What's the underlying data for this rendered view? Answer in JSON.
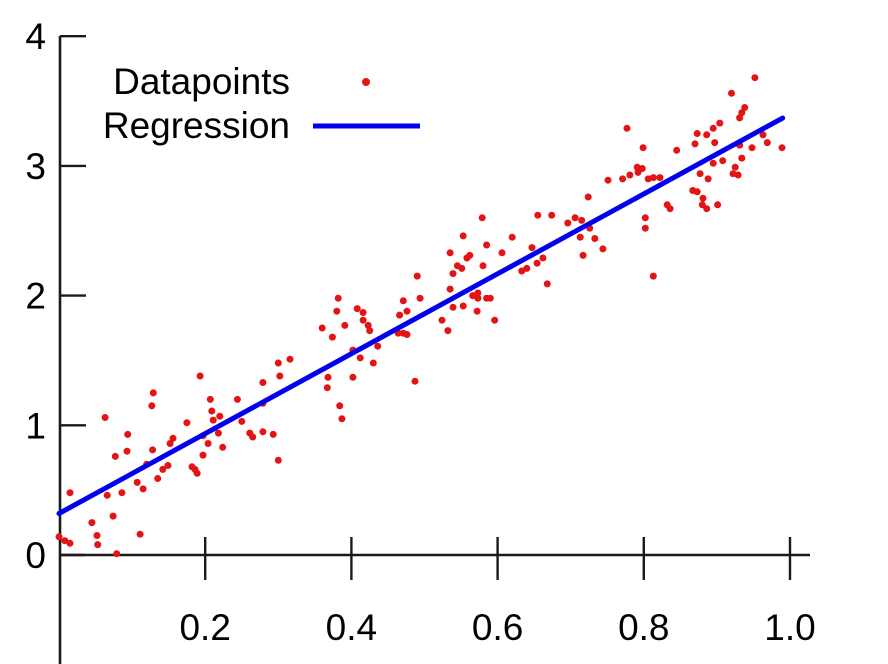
{
  "figure": {
    "background": "#ffffff"
  },
  "colors": {
    "points": "#e51414",
    "regression_line": "#0000ee",
    "axis": "#1a1a1a",
    "text": "#000000"
  },
  "chart_data": {
    "type": "scatter",
    "title": "",
    "xlabel": "",
    "ylabel": "",
    "grid": false,
    "xlim": [
      0,
      1.03
    ],
    "ylim": [
      -0.85,
      4.02
    ],
    "x_tick_values": [
      0.2,
      0.4,
      0.6,
      0.8,
      1.0
    ],
    "x_tick_labels": [
      "0.2",
      "0.4",
      "0.6",
      "0.8",
      "1.0"
    ],
    "y_tick_values": [
      0,
      1,
      2,
      3,
      4
    ],
    "y_tick_labels": [
      "0",
      "1",
      "2",
      "3",
      "4"
    ],
    "legend": {
      "position": "upper-left",
      "entries": [
        {
          "label": "Datapoints",
          "sample": "marker",
          "color": "#e51414"
        },
        {
          "label": "Regression",
          "sample": "line",
          "color": "#0000ee"
        }
      ]
    },
    "series": [
      {
        "name": "Datapoints",
        "type": "scatter",
        "color": "#e51414",
        "points": [
          [
            0.0,
            0.14
          ],
          [
            0.008,
            0.11
          ],
          [
            0.015,
            0.09
          ],
          [
            0.015,
            0.48
          ],
          [
            0.045,
            0.25
          ],
          [
            0.052,
            0.15
          ],
          [
            0.053,
            0.08
          ],
          [
            0.063,
            1.06
          ],
          [
            0.066,
            0.46
          ],
          [
            0.074,
            0.3
          ],
          [
            0.077,
            0.76
          ],
          [
            0.079,
            0.01
          ],
          [
            0.086,
            0.48
          ],
          [
            0.093,
            0.8
          ],
          [
            0.094,
            0.93
          ],
          [
            0.107,
            0.56
          ],
          [
            0.111,
            0.16
          ],
          [
            0.115,
            0.51
          ],
          [
            0.12,
            0.7
          ],
          [
            0.127,
            1.15
          ],
          [
            0.128,
            0.81
          ],
          [
            0.129,
            1.25
          ],
          [
            0.135,
            0.59
          ],
          [
            0.142,
            0.66
          ],
          [
            0.149,
            0.69
          ],
          [
            0.152,
            0.86
          ],
          [
            0.156,
            0.9
          ],
          [
            0.175,
            1.02
          ],
          [
            0.182,
            0.68
          ],
          [
            0.186,
            0.66
          ],
          [
            0.189,
            0.63
          ],
          [
            0.193,
            1.38
          ],
          [
            0.197,
            0.92
          ],
          [
            0.197,
            0.77
          ],
          [
            0.204,
            0.86
          ],
          [
            0.207,
            1.2
          ],
          [
            0.209,
            1.11
          ],
          [
            0.211,
            1.04
          ],
          [
            0.218,
            0.94
          ],
          [
            0.22,
            1.07
          ],
          [
            0.224,
            0.83
          ],
          [
            0.244,
            1.2
          ],
          [
            0.25,
            1.03
          ],
          [
            0.261,
            0.94
          ],
          [
            0.265,
            0.91
          ],
          [
            0.279,
            0.95
          ],
          [
            0.279,
            1.17
          ],
          [
            0.279,
            1.33
          ],
          [
            0.293,
            0.93
          ],
          [
            0.3,
            0.73
          ],
          [
            0.3,
            1.48
          ],
          [
            0.302,
            1.38
          ],
          [
            0.316,
            1.51
          ],
          [
            0.36,
            1.75
          ],
          [
            0.367,
            1.29
          ],
          [
            0.368,
            1.37
          ],
          [
            0.374,
            1.68
          ],
          [
            0.38,
            1.88
          ],
          [
            0.382,
            1.98
          ],
          [
            0.384,
            1.15
          ],
          [
            0.387,
            1.05
          ],
          [
            0.391,
            1.77
          ],
          [
            0.402,
            1.58
          ],
          [
            0.402,
            1.37
          ],
          [
            0.408,
            1.9
          ],
          [
            0.412,
            1.52
          ],
          [
            0.416,
            1.87
          ],
          [
            0.416,
            1.81
          ],
          [
            0.423,
            1.77
          ],
          [
            0.425,
            1.73
          ],
          [
            0.43,
            1.48
          ],
          [
            0.436,
            1.61
          ],
          [
            0.464,
            1.71
          ],
          [
            0.466,
            1.85
          ],
          [
            0.471,
            1.96
          ],
          [
            0.471,
            1.71
          ],
          [
            0.476,
            1.88
          ],
          [
            0.476,
            1.7
          ],
          [
            0.487,
            1.34
          ],
          [
            0.494,
            1.98
          ],
          [
            0.524,
            1.81
          ],
          [
            0.532,
            1.73
          ],
          [
            0.539,
            1.91
          ],
          [
            0.553,
            1.92
          ],
          [
            0.566,
            2.0
          ],
          [
            0.572,
            1.88
          ],
          [
            0.573,
            1.98
          ],
          [
            0.585,
            1.98
          ],
          [
            0.59,
            1.98
          ],
          [
            0.596,
            1.81
          ],
          [
            0.49,
            2.15
          ],
          [
            0.535,
            2.05
          ],
          [
            0.535,
            2.33
          ],
          [
            0.539,
            2.17
          ],
          [
            0.545,
            2.23
          ],
          [
            0.551,
            2.21
          ],
          [
            0.553,
            2.46
          ],
          [
            0.558,
            2.29
          ],
          [
            0.562,
            2.31
          ],
          [
            0.573,
            2.02
          ],
          [
            0.579,
            2.6
          ],
          [
            0.58,
            2.23
          ],
          [
            0.585,
            2.39
          ],
          [
            0.606,
            2.33
          ],
          [
            0.62,
            2.45
          ],
          [
            0.633,
            2.19
          ],
          [
            0.64,
            2.21
          ],
          [
            0.647,
            2.37
          ],
          [
            0.654,
            2.25
          ],
          [
            0.655,
            2.62
          ],
          [
            0.662,
            2.29
          ],
          [
            0.668,
            2.09
          ],
          [
            0.674,
            2.62
          ],
          [
            0.696,
            2.56
          ],
          [
            0.706,
            2.6
          ],
          [
            0.713,
            2.45
          ],
          [
            0.715,
            2.58
          ],
          [
            0.717,
            2.31
          ],
          [
            0.724,
            2.76
          ],
          [
            0.726,
            2.52
          ],
          [
            0.733,
            2.44
          ],
          [
            0.744,
            2.36
          ],
          [
            0.751,
            2.89
          ],
          [
            0.771,
            2.9
          ],
          [
            0.777,
            3.29
          ],
          [
            0.781,
            2.93
          ],
          [
            0.791,
            2.99
          ],
          [
            0.792,
            2.95
          ],
          [
            0.798,
            2.98
          ],
          [
            0.799,
            3.14
          ],
          [
            0.802,
            2.6
          ],
          [
            0.802,
            2.52
          ],
          [
            0.806,
            2.9
          ],
          [
            0.813,
            2.91
          ],
          [
            0.813,
            2.15
          ],
          [
            0.822,
            2.91
          ],
          [
            0.832,
            2.7
          ],
          [
            0.836,
            2.67
          ],
          [
            0.845,
            3.12
          ],
          [
            0.867,
            2.81
          ],
          [
            0.87,
            3.17
          ],
          [
            0.873,
            3.25
          ],
          [
            0.873,
            2.8
          ],
          [
            0.877,
            2.94
          ],
          [
            0.88,
            2.7
          ],
          [
            0.881,
            2.75
          ],
          [
            0.886,
            3.24
          ],
          [
            0.886,
            2.67
          ],
          [
            0.888,
            2.9
          ],
          [
            0.895,
            3.29
          ],
          [
            0.895,
            3.02
          ],
          [
            0.897,
            3.18
          ],
          [
            0.901,
            2.7
          ],
          [
            0.904,
            3.33
          ],
          [
            0.908,
            3.04
          ],
          [
            0.92,
            3.56
          ],
          [
            0.922,
            2.94
          ],
          [
            0.925,
            2.99
          ],
          [
            0.929,
            2.93
          ],
          [
            0.931,
            3.37
          ],
          [
            0.931,
            3.16
          ],
          [
            0.934,
            3.41
          ],
          [
            0.934,
            3.06
          ],
          [
            0.938,
            3.45
          ],
          [
            0.948,
            3.14
          ],
          [
            0.952,
            3.68
          ],
          [
            0.963,
            3.24
          ],
          [
            0.969,
            3.18
          ],
          [
            0.989,
            3.14
          ]
        ]
      },
      {
        "name": "Regression",
        "type": "line",
        "color": "#0000ee",
        "slope": 3.08,
        "intercept": 0.32,
        "x_range": [
          0.0,
          0.99
        ]
      }
    ]
  }
}
